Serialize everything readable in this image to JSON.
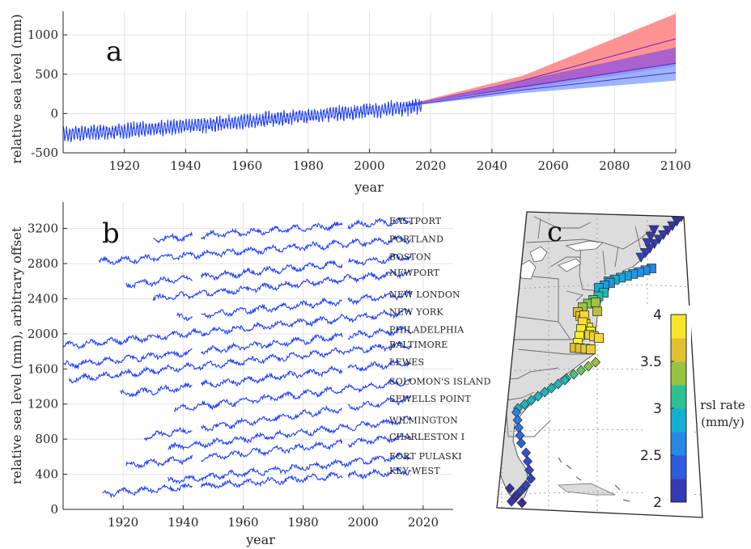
{
  "chart_data": [
    {
      "panel": "a",
      "type": "line",
      "xlabel": "year",
      "ylabel": "relative sea level (mm)",
      "xlim": [
        1900,
        2100
      ],
      "ylim": [
        -500,
        1300
      ],
      "xticks": [
        1920,
        1940,
        1960,
        1980,
        2000,
        2020,
        2040,
        2060,
        2080,
        2100
      ],
      "yticks": [
        -500,
        0,
        500,
        1000
      ],
      "grid": true,
      "series": [
        {
          "color": "#1f3fff",
          "x_start": 1900,
          "x_end": 2017,
          "trend_start": -265,
          "trend_end": 95,
          "seasonal_amplitude": 85
        },
        {
          "color": "#ff8080",
          "band": true,
          "x": [
            2012,
            2050,
            2100
          ],
          "lower": [
            90,
            300,
            600
          ],
          "upper": [
            110,
            480,
            1270
          ],
          "median": [
            100,
            420,
            950
          ]
        },
        {
          "color": "#9b59d6",
          "band": true,
          "x": [
            2012,
            2050,
            2100
          ],
          "lower": [
            90,
            300,
            600
          ],
          "upper": [
            110,
            420,
            840
          ],
          "median": [
            100,
            340,
            640
          ]
        },
        {
          "color": "#8aa8ff",
          "band": true,
          "x": [
            2012,
            2050,
            2100
          ],
          "lower": [
            90,
            260,
            420
          ],
          "upper": [
            110,
            330,
            630
          ],
          "median": [
            100,
            300,
            520
          ]
        }
      ]
    },
    {
      "panel": "b",
      "type": "line",
      "xlabel": "year",
      "ylabel": "relative sea level (mm), arbitrary offset",
      "xlim": [
        1900,
        2030
      ],
      "ylim": [
        0,
        3500
      ],
      "xticks": [
        1920,
        1940,
        1960,
        1980,
        2000,
        2020
      ],
      "yticks": [
        0,
        400,
        800,
        1200,
        1600,
        2000,
        2400,
        2800,
        3200
      ],
      "grid": true,
      "series": [
        {
          "name": "EASTPORT",
          "x_start": 1930,
          "x_end": 2016,
          "y_start": 3080,
          "y_end": 3290
        },
        {
          "name": "PORTLAND",
          "x_start": 1912,
          "x_end": 2016,
          "y_start": 2820,
          "y_end": 3080
        },
        {
          "name": "BOSTON",
          "x_start": 1921,
          "x_end": 2016,
          "y_start": 2560,
          "y_end": 2880
        },
        {
          "name": "NEWPORT",
          "x_start": 1930,
          "x_end": 2016,
          "y_start": 2400,
          "y_end": 2700
        },
        {
          "name": "NEW LONDON",
          "x_start": 1938,
          "x_end": 2016,
          "y_start": 2190,
          "y_end": 2450
        },
        {
          "name": "NEW YORK",
          "x_start": 1900,
          "x_end": 2016,
          "y_start": 1860,
          "y_end": 2250
        },
        {
          "name": "PHILADELPHIA",
          "x_start": 1900,
          "x_end": 2016,
          "y_start": 1640,
          "y_end": 2050
        },
        {
          "name": "BALTIMORE",
          "x_start": 1902,
          "x_end": 2016,
          "y_start": 1480,
          "y_end": 1880
        },
        {
          "name": "LEWES",
          "x_start": 1919,
          "x_end": 2016,
          "y_start": 1310,
          "y_end": 1680
        },
        {
          "name": "SOLOMON'S ISLAND",
          "x_start": 1937,
          "x_end": 2016,
          "y_start": 1140,
          "y_end": 1460
        },
        {
          "name": "SEWELLS POINT",
          "x_start": 1927,
          "x_end": 2016,
          "y_start": 830,
          "y_end": 1260
        },
        {
          "name": "WILMINGTON",
          "x_start": 1935,
          "x_end": 2016,
          "y_start": 700,
          "y_end": 1020
        },
        {
          "name": "CHARLESTON I",
          "x_start": 1921,
          "x_end": 2016,
          "y_start": 500,
          "y_end": 830
        },
        {
          "name": "FORT PULASKI",
          "x_start": 1935,
          "x_end": 2016,
          "y_start": 320,
          "y_end": 610
        },
        {
          "name": "KEY WEST",
          "x_start": 1913,
          "x_end": 2016,
          "y_start": 180,
          "y_end": 440
        }
      ]
    },
    {
      "panel": "c",
      "type": "scatter",
      "colorbar": {
        "label": "rsl rate\n(mm/y)",
        "min": 2,
        "max": 4,
        "ticks": [
          "4",
          "3.5",
          "3",
          "2.5",
          "2"
        ]
      }
    }
  ],
  "panels": {
    "a": "a",
    "b": "b",
    "c": "c"
  },
  "colors": {
    "tide": "#1f3fff",
    "red": "#ff8080",
    "purple": "#9b59d6",
    "blue": "#8aa8ff",
    "land": "#dcdcdc",
    "ocean": "#ffffff"
  },
  "colorbar": {
    "label_line1": "rsl rate",
    "label_line2": "(mm/y)"
  }
}
